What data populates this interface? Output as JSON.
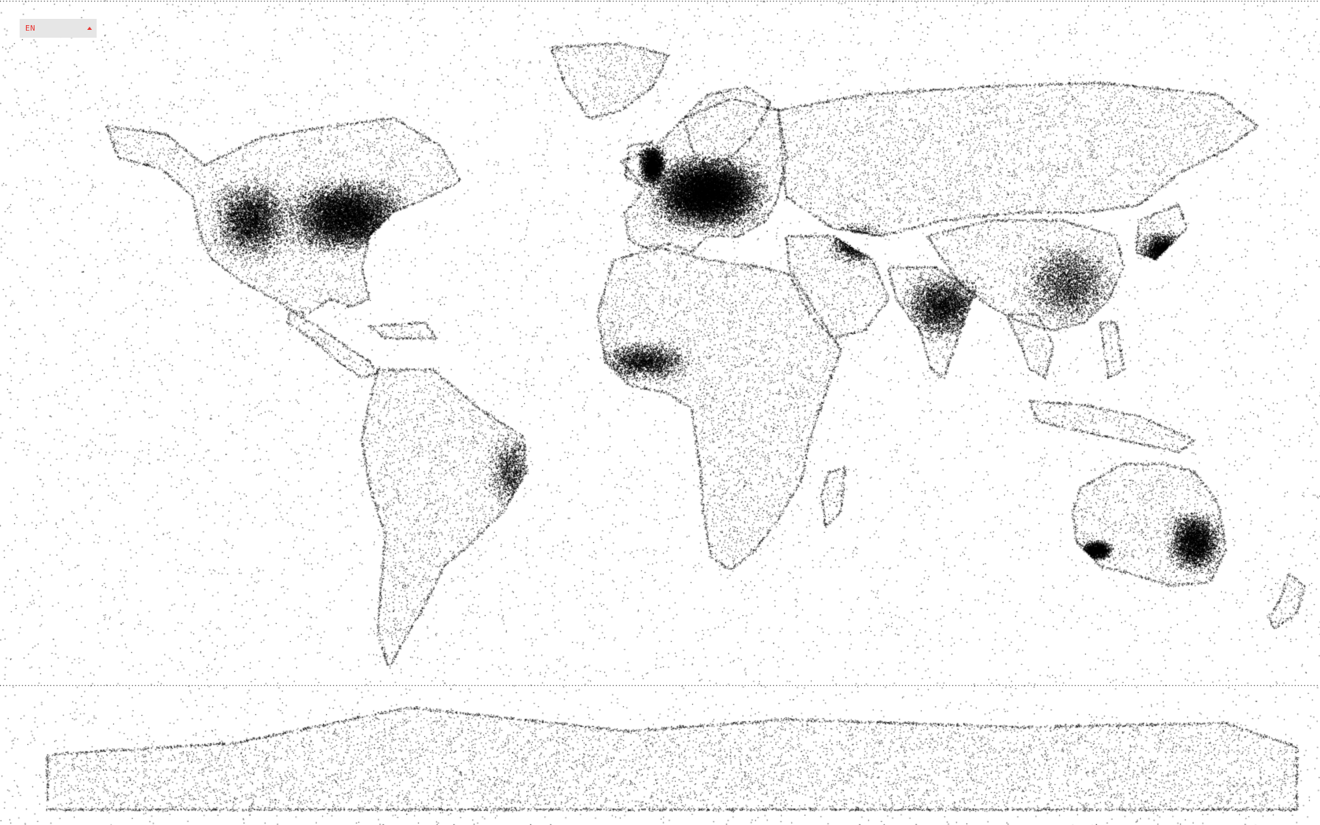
{
  "language_selector": {
    "selected": "EN",
    "icon": "caret-up-icon"
  },
  "colors": {
    "background": "#ffffff",
    "dots": "#000000",
    "accent": "#e8322e",
    "selector_bg": "#e6e6e6"
  },
  "map": {
    "projection": "equirectangular",
    "style": "dot-density",
    "legend": "none"
  }
}
